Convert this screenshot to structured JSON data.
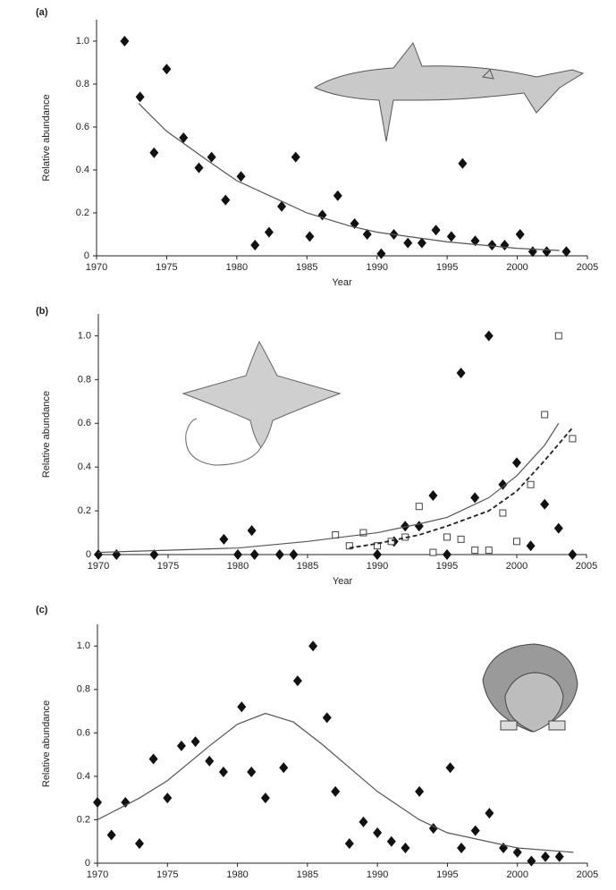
{
  "chart_data": [
    {
      "type": "scatter",
      "panel": "(a)",
      "ylabel": "Relative abundance",
      "xlabel": "Year",
      "xlim": [
        1970,
        2005
      ],
      "xticks": [
        1970,
        1975,
        1980,
        1985,
        1990,
        1995,
        2000,
        2005
      ],
      "ylim": [
        0,
        1.1
      ],
      "yticks": [
        0,
        0.2,
        0.4,
        0.6,
        0.8,
        {
          "value": 1,
          "label": "1.0"
        }
      ],
      "series": [
        {
          "mode": "markers",
          "marker": "diamond",
          "color": "#111111",
          "x": [
            1972,
            1973.1,
            1974.1,
            1975,
            1976.2,
            1977.3,
            1978.2,
            1979.2,
            1980.3,
            1981.3,
            1982.3,
            1983.2,
            1984.2,
            1985.2,
            1986.1,
            1987.2,
            1988.4,
            1989.3,
            1990.3,
            1991.2,
            1992.2,
            1993.2,
            1994.2,
            1995.3,
            1996.1,
            1997,
            1998.2,
            1999.1,
            2000.2,
            2001.1,
            2002.1,
            2003.5
          ],
          "values": [
            1.0,
            0.74,
            0.48,
            0.87,
            0.55,
            0.41,
            0.46,
            0.26,
            0.37,
            0.05,
            0.11,
            0.23,
            0.46,
            0.09,
            0.19,
            0.28,
            0.15,
            0.1,
            0.01,
            0.1,
            0.06,
            0.06,
            0.12,
            0.09,
            0.43,
            0.07,
            0.05,
            0.05,
            0.1,
            0.02,
            0.02,
            0.02
          ]
        },
        {
          "mode": "line",
          "dash": false,
          "color": "#555555",
          "x": [
            1973,
            1975,
            1978,
            1980,
            1983,
            1985,
            1988,
            1990,
            1995,
            2000,
            2003
          ],
          "values": [
            0.71,
            0.58,
            0.44,
            0.35,
            0.26,
            0.2,
            0.14,
            0.11,
            0.065,
            0.035,
            0.025
          ]
        }
      ]
    },
    {
      "type": "scatter",
      "panel": "(b)",
      "ylabel": "Relative abundance",
      "xlabel": "Year",
      "xlim": [
        1970,
        2005
      ],
      "xticks": [
        1970,
        1975,
        1980,
        1985,
        1990,
        1995,
        2000,
        2005
      ],
      "ylim": [
        0,
        1.1
      ],
      "yticks": [
        0,
        0.2,
        0.4,
        0.6,
        0.8,
        {
          "value": 1,
          "label": "1.0"
        }
      ],
      "series": [
        {
          "mode": "markers",
          "marker": "diamond",
          "color": "#111111",
          "x": [
            1970,
            1971.3,
            1974,
            1979,
            1980,
            1981,
            1981.2,
            1983,
            1984,
            1990,
            1991.2,
            1992,
            1993,
            1994,
            1995,
            1996,
            1997,
            1998,
            1999,
            2000,
            2001,
            2002,
            2003,
            2004
          ],
          "values": [
            0,
            0,
            0,
            0.07,
            0,
            0.11,
            0,
            0,
            0,
            0,
            0.06,
            0.13,
            0.13,
            0.27,
            0,
            0.83,
            0.26,
            1.0,
            0.32,
            0.42,
            0.04,
            0.23,
            0.12,
            0
          ]
        },
        {
          "mode": "markers",
          "marker": "square",
          "color": "#444444",
          "x": [
            1987,
            1988,
            1989,
            1990,
            1991,
            1992,
            1993,
            1994,
            1995,
            1996,
            1997,
            1998,
            1999,
            2000,
            2001,
            2002,
            2003,
            2004
          ],
          "values": [
            0.09,
            0.04,
            0.1,
            0.04,
            0.06,
            0.08,
            0.22,
            0.01,
            0.08,
            0.07,
            0.02,
            0.02,
            0.19,
            0.06,
            0.32,
            0.64,
            1.0,
            0.53
          ]
        },
        {
          "mode": "line",
          "dash": false,
          "color": "#555555",
          "x": [
            1970,
            1975,
            1980,
            1985,
            1990,
            1993,
            1995,
            1998,
            2000,
            2002,
            2003
          ],
          "values": [
            0.01,
            0.02,
            0.03,
            0.06,
            0.1,
            0.14,
            0.17,
            0.26,
            0.36,
            0.5,
            0.6
          ]
        },
        {
          "mode": "line",
          "dash": true,
          "color": "#222222",
          "x": [
            1988,
            1990,
            1993,
            1995,
            1998,
            2000,
            2002,
            2004
          ],
          "values": [
            0.03,
            0.05,
            0.09,
            0.13,
            0.2,
            0.29,
            0.43,
            0.58
          ]
        }
      ]
    },
    {
      "type": "scatter",
      "panel": "(c)",
      "ylabel": "Relative abundance",
      "xlim": [
        1970,
        2005
      ],
      "xticks": [
        1970,
        1975,
        1980,
        1985,
        1990,
        1995,
        2000,
        2005
      ],
      "ylim": [
        0,
        1.1
      ],
      "yticks": [
        0,
        0.2,
        0.4,
        0.6,
        0.8,
        {
          "value": 1,
          "label": "1.0"
        }
      ],
      "series": [
        {
          "mode": "markers",
          "marker": "diamond",
          "color": "#111111",
          "x": [
            1970,
            1971,
            1972,
            1973,
            1974,
            1975,
            1976,
            1977,
            1978,
            1979,
            1980.3,
            1981,
            1982,
            1983.3,
            1984.3,
            1985.4,
            1986.4,
            1987,
            1988,
            1989,
            1990,
            1991,
            1992,
            1993,
            1994,
            1995.2,
            1996,
            1997,
            1998,
            1999,
            2000,
            2001,
            2002,
            2003
          ],
          "values": [
            0.28,
            0.13,
            0.28,
            0.09,
            0.48,
            0.3,
            0.54,
            0.56,
            0.47,
            0.42,
            0.72,
            0.42,
            0.3,
            0.44,
            0.84,
            1.0,
            0.67,
            0.33,
            0.09,
            0.19,
            0.14,
            0.1,
            0.07,
            0.33,
            0.16,
            0.44,
            0.07,
            0.15,
            0.23,
            0.07,
            0.05,
            0.01,
            0.03,
            0.03
          ]
        },
        {
          "mode": "line",
          "dash": false,
          "color": "#555555",
          "x": [
            1970,
            1973,
            1975,
            1978,
            1980,
            1982,
            1984,
            1986,
            1988,
            1990,
            1993,
            1995,
            2000,
            2004
          ],
          "values": [
            0.2,
            0.3,
            0.38,
            0.54,
            0.64,
            0.69,
            0.65,
            0.55,
            0.44,
            0.33,
            0.2,
            0.14,
            0.07,
            0.05
          ]
        }
      ]
    }
  ]
}
